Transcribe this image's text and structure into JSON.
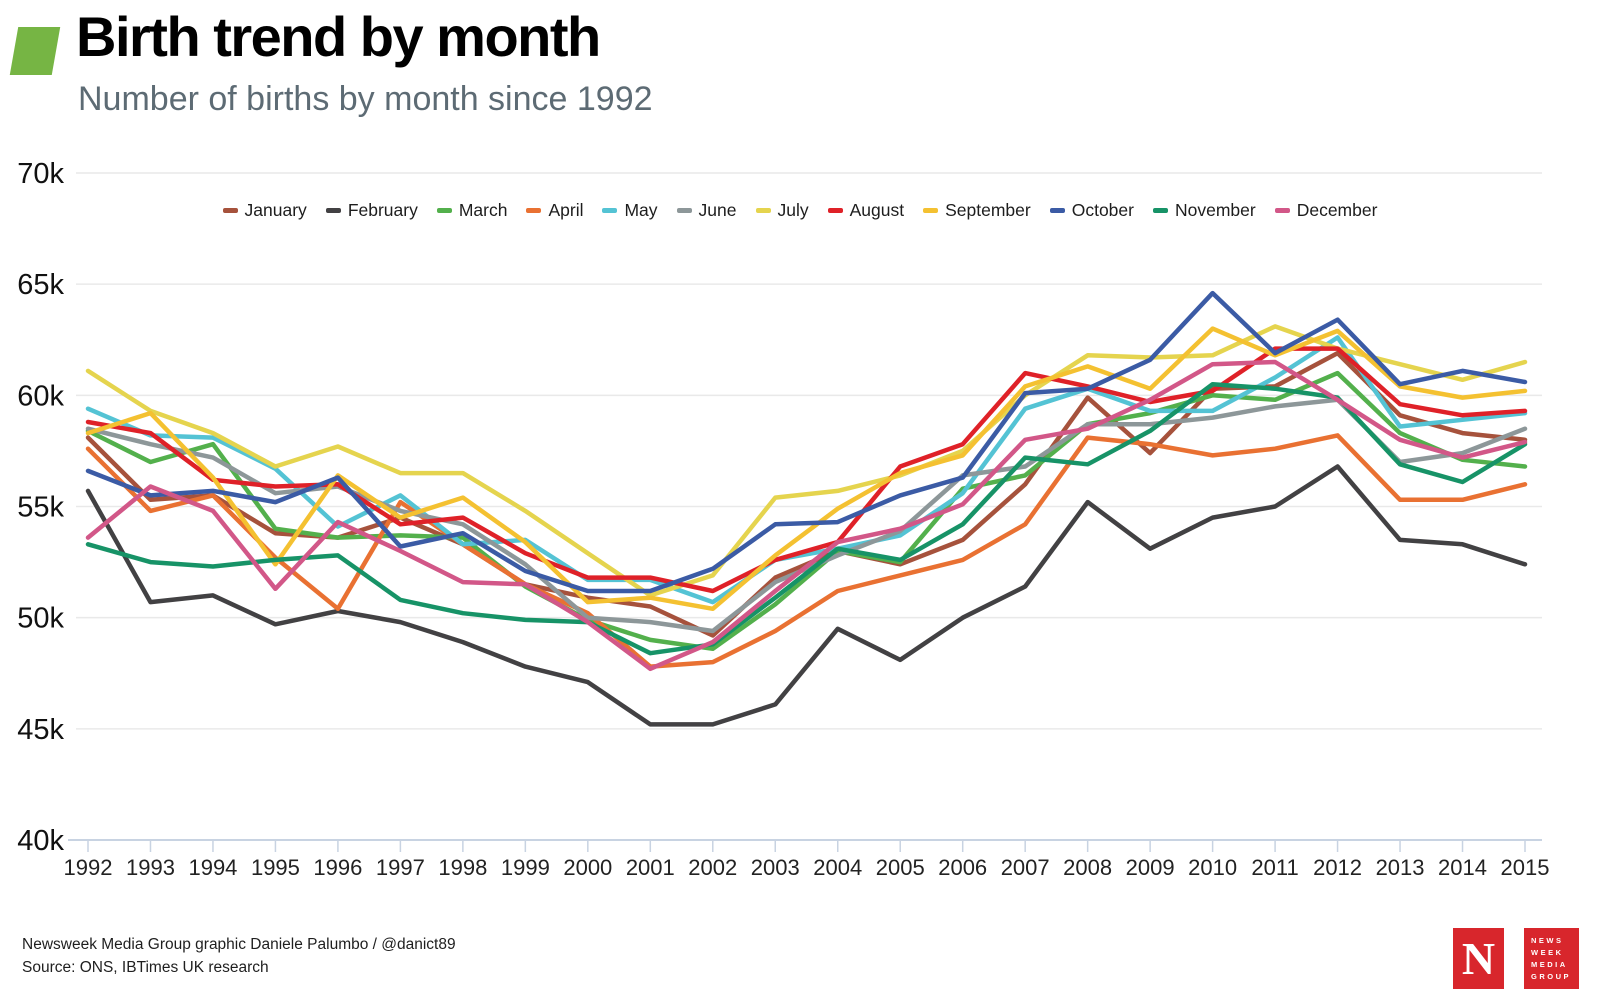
{
  "header": {
    "title": "Birth trend by month",
    "subtitle": "Number of births by month since 1992",
    "bullet_color": "#76b544"
  },
  "footer": {
    "credit": "Newsweek Media Group graphic Daniele Palumbo / @danict89",
    "source": "Source: ONS, IBTimes UK research"
  },
  "logo": {
    "n_letter": "N",
    "lines": [
      "NEWS",
      "WEEK",
      "MEDIA",
      "GROUP"
    ],
    "color": "#d8262c"
  },
  "chart_data": {
    "type": "line",
    "title": "Birth trend by month",
    "xlabel": "",
    "ylabel": "Number of births",
    "grid": true,
    "legend_position": "top",
    "xlim": [
      1992,
      2015
    ],
    "ylim": [
      40000,
      70000
    ],
    "ytick_values": [
      70,
      65,
      60,
      55,
      50,
      45,
      40
    ],
    "ytick_labels": [
      "70k",
      "65k",
      "60k",
      "55k",
      "50k",
      "45k",
      "40k"
    ],
    "x": [
      1992,
      1993,
      1994,
      1995,
      1996,
      1997,
      1998,
      1999,
      2000,
      2001,
      2002,
      2003,
      2004,
      2005,
      2006,
      2007,
      2008,
      2009,
      2010,
      2011,
      2012,
      2013,
      2014,
      2015
    ],
    "units": "thousands of births",
    "axis_color": "#c8d3e2",
    "gridline_color": "#e9e9e9",
    "series": [
      {
        "name": "January",
        "color": "#a6523c",
        "values": [
          58.1,
          55.3,
          55.5,
          53.8,
          53.6,
          54.5,
          53.3,
          51.5,
          50.9,
          50.5,
          49.2,
          51.8,
          53.0,
          52.4,
          53.5,
          56.0,
          59.9,
          57.4,
          60.3,
          60.4,
          61.9,
          59.1,
          58.3,
          58.0
        ]
      },
      {
        "name": "February",
        "color": "#424143",
        "values": [
          55.7,
          50.7,
          51.0,
          49.7,
          50.3,
          49.8,
          48.9,
          47.8,
          47.1,
          45.2,
          45.2,
          46.1,
          49.5,
          48.1,
          50.0,
          51.4,
          55.2,
          53.1,
          54.5,
          55.0,
          56.8,
          53.5,
          53.3,
          52.4
        ]
      },
      {
        "name": "March",
        "color": "#53b04c",
        "values": [
          58.4,
          57.0,
          57.8,
          54.0,
          53.6,
          53.7,
          53.6,
          51.4,
          49.9,
          49.0,
          48.6,
          50.6,
          53.0,
          52.5,
          55.8,
          56.4,
          58.7,
          59.2,
          60.0,
          59.8,
          61.0,
          58.3,
          57.1,
          56.8
        ]
      },
      {
        "name": "April",
        "color": "#e97132",
        "values": [
          57.6,
          54.8,
          55.5,
          52.7,
          50.4,
          55.2,
          53.3,
          51.5,
          50.2,
          47.8,
          48.0,
          49.4,
          51.2,
          51.9,
          52.6,
          54.2,
          58.1,
          57.8,
          57.3,
          57.6,
          58.2,
          55.3,
          55.3,
          56.0
        ]
      },
      {
        "name": "May",
        "color": "#54c3d4",
        "values": [
          59.4,
          58.2,
          58.1,
          56.7,
          54.1,
          55.5,
          53.3,
          53.5,
          51.7,
          51.7,
          50.7,
          52.6,
          53.1,
          53.7,
          55.6,
          59.4,
          60.3,
          59.3,
          59.3,
          60.8,
          62.6,
          58.6,
          58.9,
          59.2
        ]
      },
      {
        "name": "June",
        "color": "#8d9799",
        "values": [
          58.5,
          57.8,
          57.2,
          55.6,
          55.9,
          54.8,
          54.2,
          52.4,
          50.0,
          49.8,
          49.4,
          51.6,
          52.8,
          53.9,
          56.4,
          56.8,
          58.7,
          58.7,
          59.0,
          59.5,
          59.8,
          57.0,
          57.4,
          58.5
        ]
      },
      {
        "name": "July",
        "color": "#e5d44e",
        "values": [
          61.1,
          59.3,
          58.3,
          56.8,
          57.7,
          56.5,
          56.5,
          54.8,
          52.9,
          51.0,
          51.9,
          55.4,
          55.7,
          56.4,
          57.5,
          60.0,
          61.8,
          61.7,
          61.8,
          63.1,
          62.1,
          61.4,
          60.7,
          61.5
        ]
      },
      {
        "name": "August",
        "color": "#df2128",
        "values": [
          58.8,
          58.3,
          56.2,
          55.9,
          56.0,
          54.2,
          54.5,
          52.9,
          51.8,
          51.8,
          51.2,
          52.6,
          53.4,
          56.8,
          57.8,
          61.0,
          60.4,
          59.7,
          60.2,
          62.1,
          62.1,
          59.6,
          59.1,
          59.3
        ]
      },
      {
        "name": "September",
        "color": "#f4c131",
        "values": [
          58.3,
          59.2,
          56.3,
          52.4,
          56.4,
          54.5,
          55.4,
          53.4,
          50.7,
          50.9,
          50.4,
          52.8,
          54.9,
          56.5,
          57.3,
          60.4,
          61.3,
          60.3,
          63.0,
          61.8,
          62.9,
          60.4,
          59.9,
          60.2
        ]
      },
      {
        "name": "October",
        "color": "#3b5ba5",
        "values": [
          56.6,
          55.5,
          55.7,
          55.2,
          56.3,
          53.2,
          53.8,
          52.1,
          51.2,
          51.2,
          52.2,
          54.2,
          54.3,
          55.5,
          56.3,
          60.1,
          60.3,
          61.6,
          64.6,
          61.9,
          63.4,
          60.5,
          61.1,
          60.6
        ]
      },
      {
        "name": "November",
        "color": "#179367",
        "values": [
          53.3,
          52.5,
          52.3,
          52.6,
          52.8,
          50.8,
          50.2,
          49.9,
          49.8,
          48.4,
          48.8,
          50.9,
          53.1,
          52.6,
          54.2,
          57.2,
          56.9,
          58.4,
          60.5,
          60.3,
          59.9,
          56.9,
          56.1,
          57.8
        ]
      },
      {
        "name": "December",
        "color": "#d25788",
        "values": [
          53.6,
          55.9,
          54.8,
          51.3,
          54.3,
          53.0,
          51.6,
          51.5,
          49.8,
          47.7,
          48.9,
          51.2,
          53.4,
          54.0,
          55.1,
          58.0,
          58.5,
          59.8,
          61.4,
          61.5,
          59.8,
          58.0,
          57.2,
          57.9
        ]
      }
    ]
  }
}
